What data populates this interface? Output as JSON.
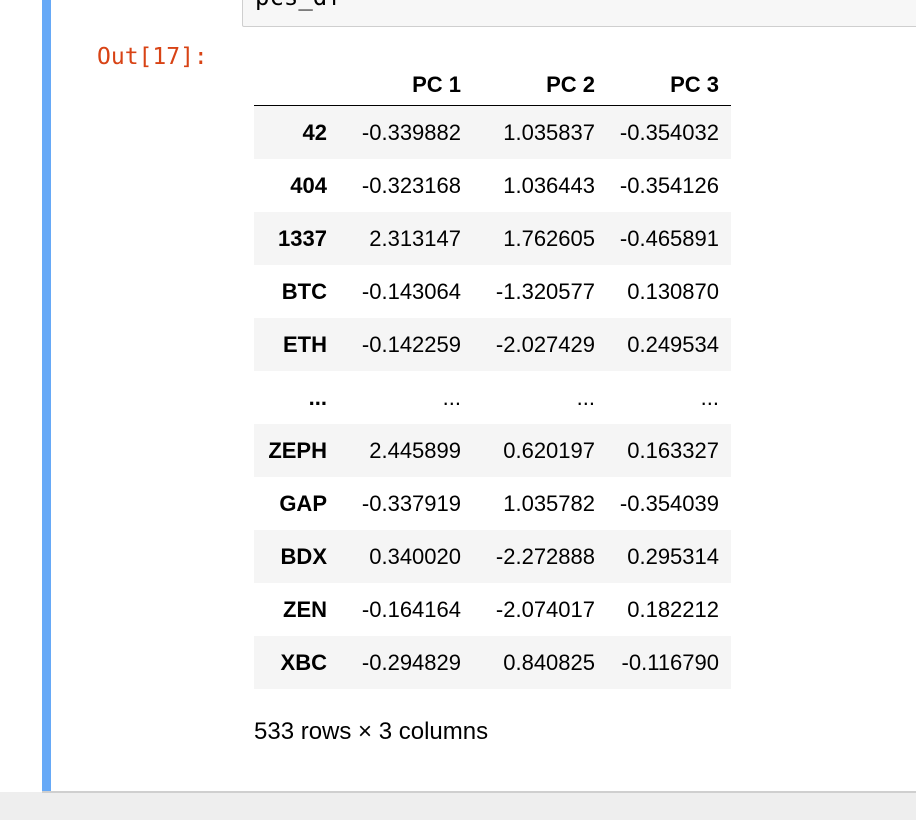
{
  "cell": {
    "input_code": "pcs_df",
    "out_prompt": "Out[17]:"
  },
  "table": {
    "columns": [
      "",
      "PC 1",
      "PC 2",
      "PC 3"
    ],
    "rows": [
      {
        "index": "42",
        "values": [
          "-0.339882",
          "1.035837",
          "-0.354032"
        ]
      },
      {
        "index": "404",
        "values": [
          "-0.323168",
          "1.036443",
          "-0.354126"
        ]
      },
      {
        "index": "1337",
        "values": [
          "2.313147",
          "1.762605",
          "-0.465891"
        ]
      },
      {
        "index": "BTC",
        "values": [
          "-0.143064",
          "-1.320577",
          "0.130870"
        ]
      },
      {
        "index": "ETH",
        "values": [
          "-0.142259",
          "-2.027429",
          "0.249534"
        ]
      },
      {
        "index": "...",
        "values": [
          "...",
          "...",
          "..."
        ]
      },
      {
        "index": "ZEPH",
        "values": [
          "2.445899",
          "0.620197",
          "0.163327"
        ]
      },
      {
        "index": "GAP",
        "values": [
          "-0.337919",
          "1.035782",
          "-0.354039"
        ]
      },
      {
        "index": "BDX",
        "values": [
          "0.340020",
          "-2.272888",
          "0.295314"
        ]
      },
      {
        "index": "ZEN",
        "values": [
          "-0.164164",
          "-2.074017",
          "0.182212"
        ]
      },
      {
        "index": "XBC",
        "values": [
          "-0.294829",
          "0.840825",
          "-0.116790"
        ]
      }
    ]
  },
  "shape_text": "533 rows × 3 columns",
  "colors": {
    "selected_bar": "#66a9f7",
    "out_prompt": "#d84315"
  }
}
